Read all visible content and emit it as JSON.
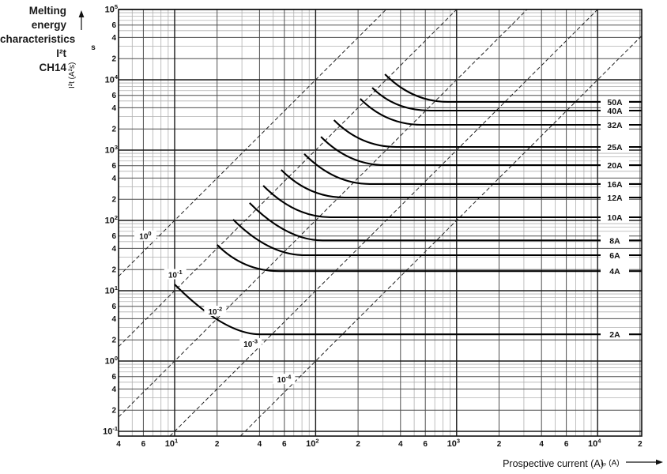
{
  "display": {
    "title_lines": {
      "l1": "Melting energy",
      "l2": "characteristics I²t",
      "l3": "CH14"
    }
  },
  "chart_data": {
    "type": "line",
    "title": "Melting energy characteristics I²t CH14",
    "xlabel": "Prospective current (A)",
    "x_symbol": "Iₚ (A)",
    "ylabel": "I²t (A²s)",
    "y_unit_note": "s",
    "scale": "log-log",
    "grid": "on",
    "xlim": [
      4,
      21000
    ],
    "ylim": [
      0.085,
      100000
    ],
    "x_decade_exponents": [
      "1",
      "2",
      "3",
      "4"
    ],
    "y_decade_exponents": [
      "5",
      "4",
      "3",
      "2",
      "1",
      "0",
      "-1"
    ],
    "y_minor_tick_labels": [
      "6",
      "4",
      "2"
    ],
    "x_labeled_minor_values": [
      4,
      6,
      20,
      40,
      60,
      200,
      400,
      600,
      2000,
      4000,
      6000,
      20000
    ],
    "time_lines_seconds": [
      {
        "t": 1,
        "exp": "0",
        "label_at": {
          "i": 6.2,
          "i2t": 60
        }
      },
      {
        "t": 0.1,
        "exp": "-1",
        "label_at": {
          "i": 10.1,
          "i2t": 17
        }
      },
      {
        "t": 0.01,
        "exp": "-2",
        "label_at": {
          "i": 19.4,
          "i2t": 5.1
        }
      },
      {
        "t": 0.001,
        "exp": "-3",
        "label_at": {
          "i": 34.6,
          "i2t": 1.77
        }
      },
      {
        "t": 0.0001,
        "exp": "-4",
        "label_at": {
          "i": 59.7,
          "i2t": 0.55
        }
      }
    ],
    "fuse_curves": [
      {
        "rating": "2A",
        "i2t_asymptote": 2.4,
        "tip": {
          "i": 10,
          "i2t": 12.3
        }
      },
      {
        "rating": "4A",
        "i2t_asymptote": 19,
        "tip": {
          "i": 20,
          "i2t": 45
        }
      },
      {
        "rating": "6A",
        "i2t_asymptote": 32,
        "tip": {
          "i": 26,
          "i2t": 103
        }
      },
      {
        "rating": "8A",
        "i2t_asymptote": 52,
        "tip": {
          "i": 34,
          "i2t": 177
        }
      },
      {
        "rating": "10A",
        "i2t_asymptote": 111,
        "tip": {
          "i": 42.5,
          "i2t": 312
        }
      },
      {
        "rating": "12A",
        "i2t_asymptote": 212,
        "tip": {
          "i": 57,
          "i2t": 524
        }
      },
      {
        "rating": "16A",
        "i2t_asymptote": 330,
        "tip": {
          "i": 83,
          "i2t": 880
        }
      },
      {
        "rating": "20A",
        "i2t_asymptote": 612,
        "tip": {
          "i": 109,
          "i2t": 1550
        }
      },
      {
        "rating": "25A",
        "i2t_asymptote": 1110,
        "tip": {
          "i": 135,
          "i2t": 2670
        }
      },
      {
        "rating": "32A",
        "i2t_asymptote": 2290,
        "tip": {
          "i": 207,
          "i2t": 5370
        }
      },
      {
        "rating": "40A",
        "i2t_asymptote": 3650,
        "tip": {
          "i": 252,
          "i2t": 7730
        }
      },
      {
        "rating": "50A",
        "i2t_asymptote": 4840,
        "tip": {
          "i": 310,
          "i2t": 12000
        }
      }
    ],
    "colors": {
      "background": "#ffffff",
      "curve": "#000000",
      "grid_major": "#1a1a1a",
      "grid_mid": "#4f4f4f",
      "grid_minor": "#b0b0b0",
      "time_line": "#222222",
      "text": "#111111"
    }
  }
}
